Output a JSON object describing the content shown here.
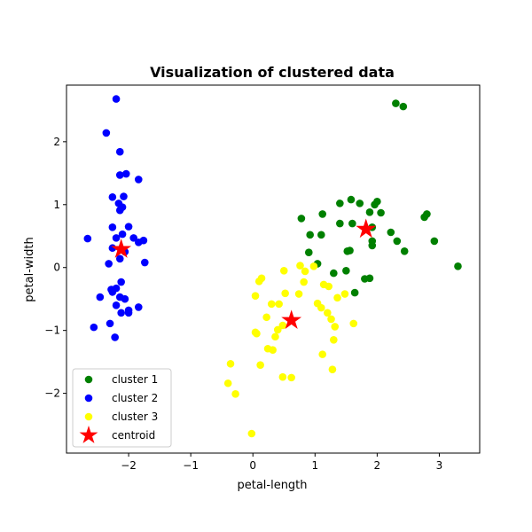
{
  "chart_data": {
    "type": "scatter",
    "title": "Visualization of clustered data",
    "xlabel": "petal-length",
    "ylabel": "petal-width",
    "xlim": [
      -3.0,
      3.65
    ],
    "ylim": [
      -2.95,
      2.9
    ],
    "xticks": [
      -2,
      -1,
      0,
      1,
      2,
      3
    ],
    "yticks": [
      -2,
      -1,
      0,
      1,
      2
    ],
    "xtick_labels": [
      "−2",
      "−1",
      "0",
      "1",
      "2",
      "3"
    ],
    "ytick_labels": [
      "−2",
      "−1",
      "0",
      "1",
      "2"
    ],
    "grid": false,
    "legend": {
      "placement": "lower-left",
      "entries": [
        "cluster 1",
        "cluster 2",
        "cluster 3",
        "centroid"
      ]
    },
    "series": [
      {
        "name": "cluster 1",
        "color": "#008000",
        "marker": "circle",
        "points": [
          [
            2.3,
            2.61
          ],
          [
            2.42,
            2.56
          ],
          [
            1.58,
            1.08
          ],
          [
            1.72,
            1.02
          ],
          [
            1.4,
            1.02
          ],
          [
            2.0,
            1.05
          ],
          [
            1.96,
            1.0
          ],
          [
            1.12,
            0.85
          ],
          [
            2.06,
            0.87
          ],
          [
            1.88,
            0.88
          ],
          [
            2.8,
            0.85
          ],
          [
            2.76,
            0.8
          ],
          [
            0.78,
            0.78
          ],
          [
            1.6,
            0.7
          ],
          [
            1.4,
            0.7
          ],
          [
            1.92,
            0.64
          ],
          [
            2.22,
            0.56
          ],
          [
            0.92,
            0.52
          ],
          [
            1.1,
            0.52
          ],
          [
            2.32,
            0.42
          ],
          [
            2.92,
            0.42
          ],
          [
            1.92,
            0.42
          ],
          [
            1.92,
            0.35
          ],
          [
            2.44,
            0.26
          ],
          [
            1.52,
            0.26
          ],
          [
            1.56,
            0.27
          ],
          [
            0.9,
            0.24
          ],
          [
            1.04,
            0.06
          ],
          [
            3.3,
            0.02
          ],
          [
            1.5,
            -0.05
          ],
          [
            1.3,
            -0.09
          ],
          [
            1.8,
            -0.18
          ],
          [
            1.88,
            -0.17
          ],
          [
            1.64,
            -0.4
          ]
        ]
      },
      {
        "name": "cluster 2",
        "color": "#0000ff",
        "marker": "circle",
        "points": [
          [
            -2.2,
            2.68
          ],
          [
            -2.36,
            2.14
          ],
          [
            -2.14,
            1.84
          ],
          [
            -2.04,
            1.49
          ],
          [
            -2.14,
            1.47
          ],
          [
            -1.84,
            1.4
          ],
          [
            -2.26,
            1.12
          ],
          [
            -2.08,
            1.13
          ],
          [
            -2.16,
            1.02
          ],
          [
            -2.1,
            0.96
          ],
          [
            -2.14,
            0.91
          ],
          [
            -2.26,
            0.64
          ],
          [
            -2.0,
            0.65
          ],
          [
            -2.66,
            0.46
          ],
          [
            -1.92,
            0.47
          ],
          [
            -2.2,
            0.47
          ],
          [
            -2.1,
            0.53
          ],
          [
            -1.76,
            0.43
          ],
          [
            -1.84,
            0.4
          ],
          [
            -2.26,
            0.31
          ],
          [
            -2.06,
            0.25
          ],
          [
            -2.14,
            0.14
          ],
          [
            -1.74,
            0.08
          ],
          [
            -2.32,
            0.06
          ],
          [
            -2.12,
            -0.23
          ],
          [
            -2.2,
            -0.33
          ],
          [
            -2.28,
            -0.35
          ],
          [
            -2.26,
            -0.39
          ],
          [
            -2.46,
            -0.47
          ],
          [
            -2.14,
            -0.47
          ],
          [
            -2.06,
            -0.5
          ],
          [
            -2.2,
            -0.6
          ],
          [
            -1.84,
            -0.63
          ],
          [
            -2.0,
            -0.68
          ],
          [
            -2.0,
            -0.72
          ],
          [
            -2.12,
            -0.72
          ],
          [
            -2.3,
            -0.89
          ],
          [
            -2.56,
            -0.95
          ],
          [
            -2.22,
            -1.11
          ]
        ]
      },
      {
        "name": "cluster 3",
        "color": "#ffff00",
        "marker": "circle",
        "points": [
          [
            0.98,
            0.02
          ],
          [
            0.76,
            0.03
          ],
          [
            0.84,
            -0.06
          ],
          [
            0.5,
            -0.05
          ],
          [
            0.14,
            -0.17
          ],
          [
            0.1,
            -0.22
          ],
          [
            0.82,
            -0.23
          ],
          [
            1.14,
            -0.27
          ],
          [
            1.22,
            -0.3
          ],
          [
            0.52,
            -0.41
          ],
          [
            0.74,
            -0.42
          ],
          [
            0.04,
            -0.45
          ],
          [
            1.36,
            -0.48
          ],
          [
            1.48,
            -0.42
          ],
          [
            0.3,
            -0.58
          ],
          [
            0.42,
            -0.58
          ],
          [
            1.04,
            -0.57
          ],
          [
            1.1,
            -0.64
          ],
          [
            1.2,
            -0.72
          ],
          [
            0.22,
            -0.79
          ],
          [
            1.26,
            -0.82
          ],
          [
            1.62,
            -0.89
          ],
          [
            1.32,
            -0.94
          ],
          [
            0.48,
            -0.92
          ],
          [
            0.4,
            -0.99
          ],
          [
            0.04,
            -1.03
          ],
          [
            0.06,
            -1.05
          ],
          [
            0.36,
            -1.1
          ],
          [
            1.3,
            -1.15
          ],
          [
            0.24,
            -1.29
          ],
          [
            0.32,
            -1.31
          ],
          [
            1.12,
            -1.38
          ],
          [
            -0.36,
            -1.53
          ],
          [
            0.12,
            -1.55
          ],
          [
            1.28,
            -1.62
          ],
          [
            0.48,
            -1.74
          ],
          [
            0.62,
            -1.75
          ],
          [
            -0.4,
            -1.84
          ],
          [
            -0.28,
            -2.01
          ],
          [
            -0.02,
            -2.64
          ]
        ]
      },
      {
        "name": "centroid",
        "color": "#ff0000",
        "marker": "star",
        "points": [
          [
            1.82,
            0.61
          ],
          [
            -2.12,
            0.29
          ],
          [
            0.62,
            -0.84
          ]
        ]
      }
    ]
  }
}
